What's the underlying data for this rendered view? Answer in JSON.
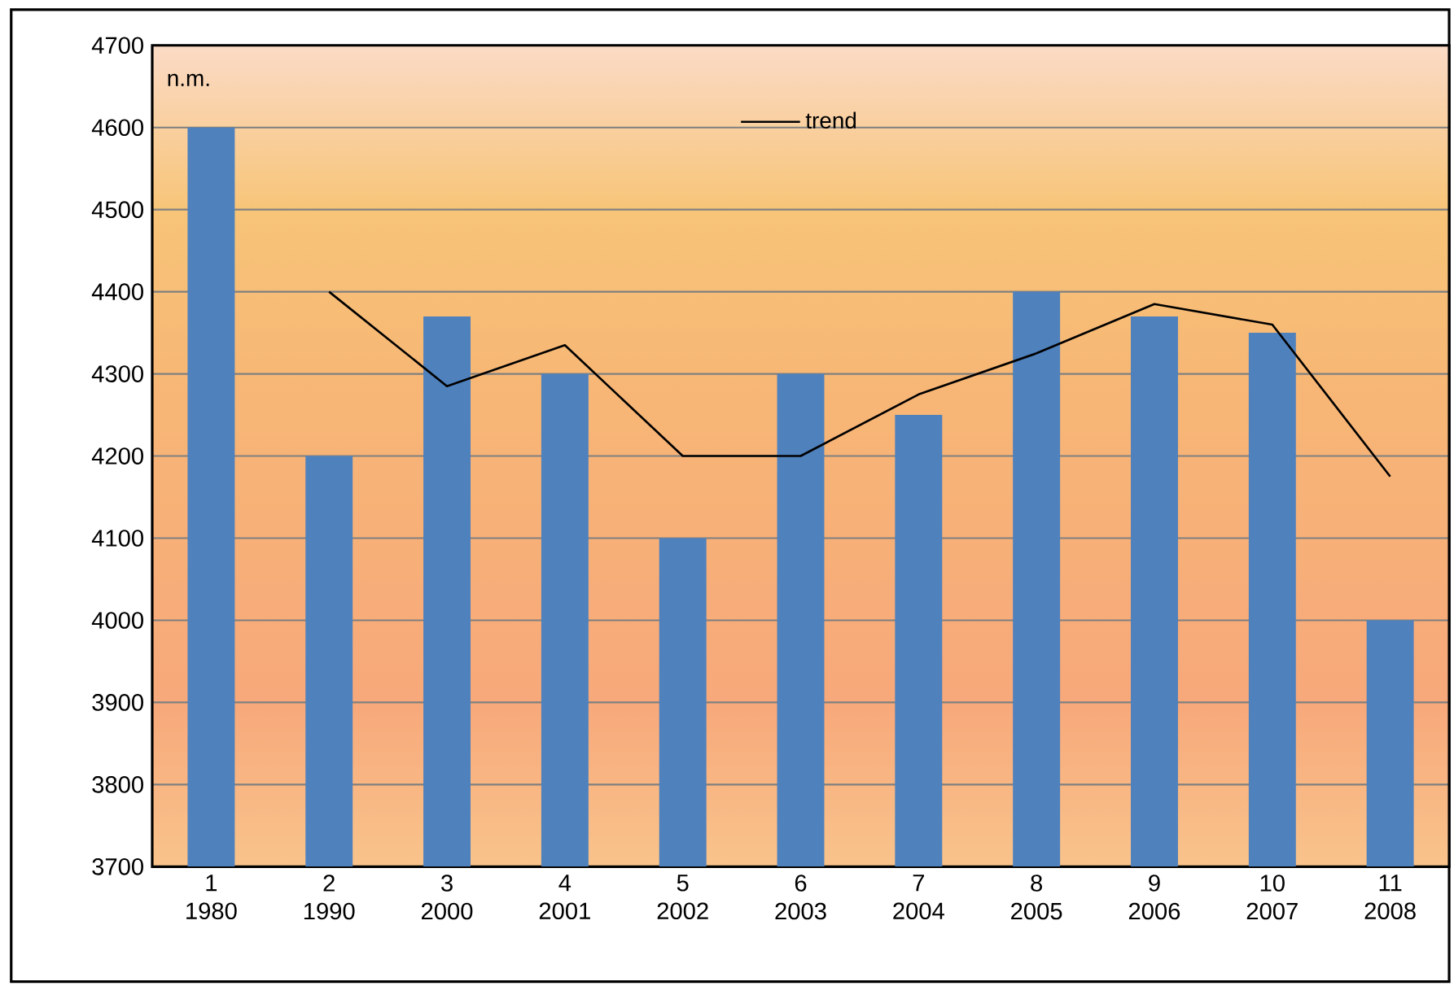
{
  "chart_data": {
    "type": "bar",
    "ylabel": "n.m.",
    "categories": [
      "1 1980",
      "2 1990",
      "3 2000",
      "4 2001",
      "5 2002",
      "6 2003",
      "7 2004",
      "8 2005",
      "9 2006",
      "10 2007",
      "11 2008"
    ],
    "series": [
      {
        "color": "#4f81bd",
        "values": [
          4600,
          4200,
          4370,
          4300,
          4100,
          4300,
          4250,
          4400,
          4370,
          4350,
          4000
        ]
      },
      {
        "type": "line",
        "name": "trend",
        "color": "#000000",
        "values": [
          null,
          4400,
          4285,
          4335,
          4200,
          4200,
          4275,
          4325,
          4385,
          4360,
          4175
        ]
      }
    ],
    "ylim": [
      3700,
      4700
    ],
    "yticks": [
      3700,
      3800,
      3900,
      4000,
      4100,
      4200,
      4300,
      4400,
      4500,
      4600,
      4700
    ],
    "grid": "y",
    "legend": "top",
    "marker": "none"
  }
}
